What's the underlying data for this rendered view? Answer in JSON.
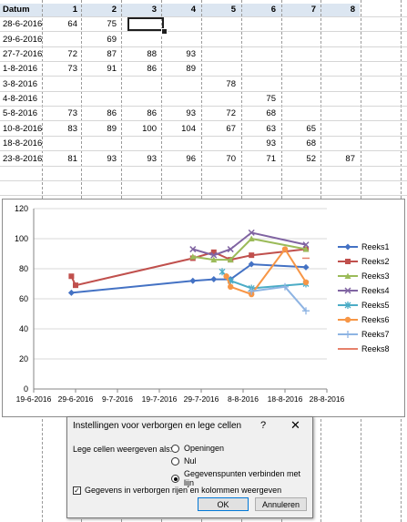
{
  "sheet": {
    "header": {
      "datum": "Datum",
      "cols": [
        "1",
        "2",
        "3",
        "4",
        "5",
        "6",
        "7",
        "8"
      ]
    },
    "rows": [
      {
        "date": "28-6-2016",
        "vals": [
          "64",
          "75",
          "",
          "",
          "",
          "",
          "",
          ""
        ]
      },
      {
        "date": "29-6-2016",
        "vals": [
          "",
          "69",
          "",
          "",
          "",
          "",
          "",
          ""
        ]
      },
      {
        "date": "27-7-2016",
        "vals": [
          "72",
          "87",
          "88",
          "93",
          "",
          "",
          "",
          ""
        ]
      },
      {
        "date": "1-8-2016",
        "vals": [
          "73",
          "91",
          "86",
          "89",
          "",
          "",
          "",
          ""
        ]
      },
      {
        "date": "3-8-2016",
        "vals": [
          "",
          "",
          "",
          "",
          "78",
          "",
          "",
          ""
        ]
      },
      {
        "date": "4-8-2016",
        "vals": [
          "",
          "",
          "",
          "",
          "",
          "75",
          "",
          ""
        ]
      },
      {
        "date": "5-8-2016",
        "vals": [
          "73",
          "86",
          "86",
          "93",
          "72",
          "68",
          "",
          ""
        ]
      },
      {
        "date": "10-8-2016",
        "vals": [
          "83",
          "89",
          "100",
          "104",
          "67",
          "63",
          "65",
          ""
        ]
      },
      {
        "date": "18-8-2016",
        "vals": [
          "",
          "",
          "",
          "",
          "",
          "93",
          "68",
          ""
        ]
      },
      {
        "date": "23-8-2016",
        "vals": [
          "81",
          "93",
          "93",
          "96",
          "70",
          "71",
          "52",
          "87"
        ]
      }
    ]
  },
  "chart_data": {
    "type": "line",
    "x_ticks": [
      "19-6-2016",
      "29-6-2016",
      "9-7-2016",
      "19-7-2016",
      "29-7-2016",
      "8-8-2016",
      "18-8-2016",
      "28-8-2016"
    ],
    "ylim": [
      0,
      120
    ],
    "y_ticks": [
      "0",
      "20",
      "40",
      "60",
      "80",
      "100",
      "120"
    ],
    "grid": true,
    "legend": "right",
    "series": [
      {
        "name": "Reeks1",
        "color": "#4472c4",
        "marker": "diamond",
        "points": [
          [
            "28-6-2016",
            64
          ],
          [
            "27-7-2016",
            72
          ],
          [
            "1-8-2016",
            73
          ],
          [
            "5-8-2016",
            73
          ],
          [
            "10-8-2016",
            83
          ],
          [
            "23-8-2016",
            81
          ]
        ]
      },
      {
        "name": "Reeks2",
        "color": "#c0504d",
        "marker": "square",
        "points": [
          [
            "28-6-2016",
            75
          ],
          [
            "29-6-2016",
            69
          ],
          [
            "27-7-2016",
            87
          ],
          [
            "1-8-2016",
            91
          ],
          [
            "5-8-2016",
            86
          ],
          [
            "10-8-2016",
            89
          ],
          [
            "23-8-2016",
            93
          ]
        ]
      },
      {
        "name": "Reeks3",
        "color": "#9bbb59",
        "marker": "triangle",
        "points": [
          [
            "27-7-2016",
            88
          ],
          [
            "1-8-2016",
            86
          ],
          [
            "5-8-2016",
            86
          ],
          [
            "10-8-2016",
            100
          ],
          [
            "23-8-2016",
            93
          ]
        ]
      },
      {
        "name": "Reeks4",
        "color": "#8064a2",
        "marker": "x",
        "points": [
          [
            "27-7-2016",
            93
          ],
          [
            "1-8-2016",
            89
          ],
          [
            "5-8-2016",
            93
          ],
          [
            "10-8-2016",
            104
          ],
          [
            "23-8-2016",
            96
          ]
        ]
      },
      {
        "name": "Reeks5",
        "color": "#4bacc6",
        "marker": "star",
        "points": [
          [
            "3-8-2016",
            78
          ],
          [
            "5-8-2016",
            72
          ],
          [
            "10-8-2016",
            67
          ],
          [
            "23-8-2016",
            70
          ]
        ]
      },
      {
        "name": "Reeks6",
        "color": "#f79646",
        "marker": "circle",
        "points": [
          [
            "4-8-2016",
            75
          ],
          [
            "5-8-2016",
            68
          ],
          [
            "10-8-2016",
            63
          ],
          [
            "18-8-2016",
            93
          ],
          [
            "23-8-2016",
            71
          ]
        ]
      },
      {
        "name": "Reeks7",
        "color": "#8eb4e3",
        "marker": "plus",
        "points": [
          [
            "10-8-2016",
            65
          ],
          [
            "18-8-2016",
            68
          ],
          [
            "23-8-2016",
            52
          ]
        ]
      },
      {
        "name": "Reeks8",
        "color": "#e6816b",
        "marker": "dash",
        "points": [
          [
            "23-8-2016",
            87
          ]
        ]
      }
    ]
  },
  "dialog": {
    "title": "Instellingen voor verborgen en lege cellen",
    "help": "?",
    "close": "✕",
    "empty_label": "Lege cellen weergeven als:",
    "options": [
      {
        "label": "Openingen",
        "selected": false
      },
      {
        "label": "Nul",
        "selected": false
      },
      {
        "label": "Gegevenspunten verbinden met lijn",
        "selected": true
      }
    ],
    "hidden_check": "✓",
    "hidden_label": "Gegevens in verborgen rijen en kolommen weergeven",
    "ok": "OK",
    "cancel": "Annuleren"
  }
}
